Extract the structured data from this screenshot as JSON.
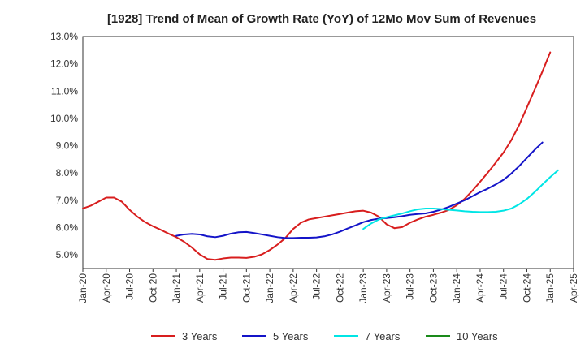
{
  "chart_data": {
    "type": "line",
    "title": "[1928]  Trend of Mean of Growth Rate (YoY) of 12Mo Mov Sum of Revenues",
    "xlabel": "",
    "ylabel": "",
    "y_tick_labels": [
      "5.0%",
      "6.0%",
      "7.0%",
      "8.0%",
      "9.0%",
      "10.0%",
      "11.0%",
      "12.0%",
      "13.0%"
    ],
    "y_ticks": [
      5,
      6,
      7,
      8,
      9,
      10,
      11,
      12,
      13
    ],
    "ylim": [
      4.5,
      13.0
    ],
    "x_tick_labels": [
      "Jan-20",
      "Apr-20",
      "Jul-20",
      "Oct-20",
      "Jan-21",
      "Apr-21",
      "Jul-21",
      "Oct-21",
      "Jan-22",
      "Apr-22",
      "Jul-22",
      "Oct-22",
      "Jan-23",
      "Apr-23",
      "Jul-23",
      "Oct-23",
      "Jan-24",
      "Apr-24",
      "Jul-24",
      "Oct-24",
      "Jan-25",
      "Apr-25"
    ],
    "x_range_months": [
      0,
      63
    ],
    "grid": true,
    "legend_position": "bottom",
    "series": [
      {
        "name": "3 Years",
        "color": "#d81e1e",
        "start_month": 0,
        "values": [
          6.7,
          6.8,
          6.95,
          7.1,
          7.1,
          6.95,
          6.65,
          6.4,
          6.2,
          6.05,
          5.92,
          5.78,
          5.65,
          5.48,
          5.27,
          5.02,
          4.85,
          4.82,
          4.87,
          4.9,
          4.9,
          4.89,
          4.93,
          5.02,
          5.18,
          5.38,
          5.62,
          5.95,
          6.18,
          6.3,
          6.35,
          6.4,
          6.45,
          6.5,
          6.55,
          6.6,
          6.62,
          6.55,
          6.4,
          6.12,
          5.98,
          6.02,
          6.18,
          6.3,
          6.4,
          6.47,
          6.55,
          6.65,
          6.82,
          7.05,
          7.35,
          7.68,
          8.02,
          8.38,
          8.75,
          9.2,
          9.75,
          10.4,
          11.05,
          11.72,
          12.42
        ]
      },
      {
        "name": "5 Years",
        "color": "#1414c8",
        "start_month": 12,
        "values": [
          5.7,
          5.75,
          5.77,
          5.75,
          5.68,
          5.65,
          5.7,
          5.78,
          5.83,
          5.84,
          5.8,
          5.75,
          5.7,
          5.65,
          5.62,
          5.62,
          5.63,
          5.63,
          5.64,
          5.68,
          5.75,
          5.85,
          5.97,
          6.08,
          6.2,
          6.28,
          6.33,
          6.35,
          6.38,
          6.42,
          6.47,
          6.5,
          6.52,
          6.58,
          6.66,
          6.76,
          6.88,
          7.0,
          7.15,
          7.3,
          7.43,
          7.58,
          7.75,
          7.98,
          8.25,
          8.55,
          8.85,
          9.12
        ]
      },
      {
        "name": "7 Years",
        "color": "#00e5e5",
        "start_month": 36,
        "values": [
          5.95,
          6.15,
          6.3,
          6.38,
          6.45,
          6.52,
          6.6,
          6.67,
          6.7,
          6.7,
          6.68,
          6.65,
          6.63,
          6.6,
          6.58,
          6.57,
          6.57,
          6.58,
          6.62,
          6.7,
          6.85,
          7.05,
          7.3,
          7.58,
          7.85,
          8.1
        ]
      },
      {
        "name": "10 Years",
        "color": "#1a8a1a",
        "start_month": 0,
        "values": []
      }
    ]
  }
}
